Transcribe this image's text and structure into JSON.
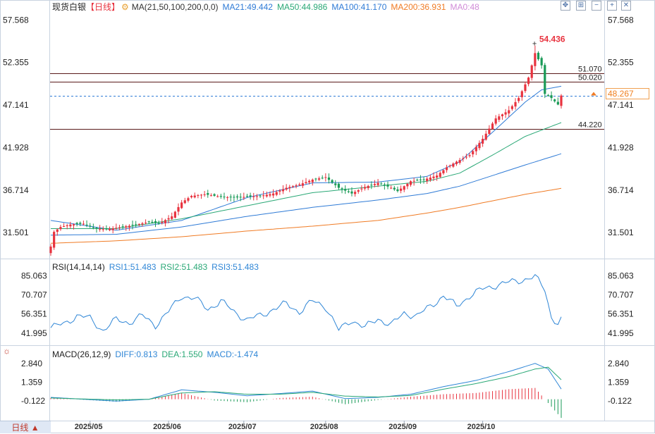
{
  "header": {
    "title": "现货白银",
    "period_tag": "【日线】",
    "ma_label": "MA(21,50,100,200,0,0)",
    "ma21": "MA21:49.442",
    "ma50": "MA50:44.986",
    "ma100": "MA100:41.170",
    "ma200": "MA200:36.931",
    "ma0": "MA0:48"
  },
  "rsi_header": {
    "label": "RSI(14,14,14)",
    "rsi1": "RSI1:51.483",
    "rsi2": "RSI2:51.483",
    "rsi3": "RSI3:51.483"
  },
  "macd_header": {
    "label": "MACD(26,12,9)",
    "diff": "DIFF:0.813",
    "dea": "DEA:1.550",
    "macd": "MACD:-1.474"
  },
  "toolbar": {
    "period_button": "日线 ▲"
  },
  "current_price": "48.267",
  "colors": {
    "up": "#e8333f",
    "down": "#1a9a57",
    "ma21": "#2f7bd6",
    "ma50": "#2aa876",
    "ma100": "#2f7bd6",
    "ma200": "#f07b24",
    "rsi": "#2f86d6",
    "level": "#5a1a1a",
    "peak": "#e8333f"
  },
  "chart_data": [
    {
      "type": "candlestick",
      "title": "现货白银",
      "y_ticks": [
        "57.568",
        "52.355",
        "47.141",
        "41.928",
        "36.714",
        "31.501"
      ],
      "ylim": [
        28.5,
        58.8
      ],
      "x_ticks": [
        "2025/05",
        "2025/06",
        "2025/07",
        "2025/08",
        "2025/09",
        "2025/10"
      ],
      "x_tick_index": [
        12,
        36,
        59,
        84,
        108,
        132
      ],
      "levels": [
        {
          "label": "51.070",
          "value": 51.07
        },
        {
          "label": "50.020",
          "value": 50.02
        },
        {
          "label": "44.220",
          "value": 44.22
        }
      ],
      "current_price": 48.267,
      "peak": {
        "label": "54.436",
        "value": 54.436,
        "index": 148
      },
      "close_anchors": [
        [
          0,
          29.8
        ],
        [
          1,
          31.6
        ],
        [
          3,
          32.2
        ],
        [
          6,
          32.5
        ],
        [
          10,
          32.6
        ],
        [
          14,
          32.0
        ],
        [
          17,
          31.9
        ],
        [
          20,
          32.1
        ],
        [
          25,
          32.4
        ],
        [
          30,
          32.8
        ],
        [
          33,
          32.6
        ],
        [
          37,
          33.5
        ],
        [
          40,
          35.2
        ],
        [
          43,
          36.0
        ],
        [
          47,
          36.2
        ],
        [
          52,
          35.9
        ],
        [
          56,
          35.8
        ],
        [
          60,
          35.9
        ],
        [
          64,
          36.0
        ],
        [
          68,
          36.3
        ],
        [
          72,
          37.0
        ],
        [
          76,
          37.4
        ],
        [
          80,
          38.0
        ],
        [
          84,
          38.3
        ],
        [
          88,
          37.0
        ],
        [
          92,
          36.3
        ],
        [
          96,
          37.1
        ],
        [
          100,
          37.6
        ],
        [
          104,
          37.0
        ],
        [
          106,
          36.6
        ],
        [
          110,
          37.8
        ],
        [
          114,
          38.0
        ],
        [
          118,
          38.5
        ],
        [
          121,
          39.5
        ],
        [
          124,
          40.2
        ],
        [
          128,
          41.0
        ],
        [
          132,
          43.0
        ],
        [
          136,
          45.5
        ],
        [
          140,
          46.5
        ],
        [
          143,
          48.0
        ],
        [
          146,
          50.5
        ],
        [
          148,
          53.5
        ],
        [
          150,
          52.0
        ],
        [
          151,
          48.5
        ],
        [
          153,
          48.0
        ],
        [
          155,
          47.2
        ],
        [
          156,
          48.3
        ]
      ],
      "ma_series": [
        {
          "name": "MA21",
          "anchors": [
            [
              0,
              33.0
            ],
            [
              20,
              31.8
            ],
            [
              40,
              33.0
            ],
            [
              60,
              35.8
            ],
            [
              80,
              37.6
            ],
            [
              100,
              37.7
            ],
            [
              115,
              38.4
            ],
            [
              125,
              40.2
            ],
            [
              135,
              43.8
            ],
            [
              145,
              47.5
            ],
            [
              150,
              49.0
            ],
            [
              156,
              49.44
            ]
          ]
        },
        {
          "name": "MA50",
          "anchors": [
            [
              0,
              32.0
            ],
            [
              20,
              32.0
            ],
            [
              40,
              33.2
            ],
            [
              60,
              34.8
            ],
            [
              80,
              36.4
            ],
            [
              100,
              37.2
            ],
            [
              115,
              37.8
            ],
            [
              125,
              38.8
            ],
            [
              135,
              41.0
            ],
            [
              145,
              43.3
            ],
            [
              156,
              44.99
            ]
          ]
        },
        {
          "name": "MA100",
          "anchors": [
            [
              0,
              31.2
            ],
            [
              20,
              31.3
            ],
            [
              40,
              32.2
            ],
            [
              60,
              33.5
            ],
            [
              80,
              34.6
            ],
            [
              100,
              35.5
            ],
            [
              115,
              36.3
            ],
            [
              125,
              37.2
            ],
            [
              135,
              38.5
            ],
            [
              145,
              39.8
            ],
            [
              156,
              41.17
            ]
          ]
        },
        {
          "name": "MA200",
          "anchors": [
            [
              0,
              30.2
            ],
            [
              20,
              30.5
            ],
            [
              40,
              31.0
            ],
            [
              60,
              31.7
            ],
            [
              80,
              32.3
            ],
            [
              100,
              33.0
            ],
            [
              115,
              33.9
            ],
            [
              125,
              34.6
            ],
            [
              135,
              35.4
            ],
            [
              145,
              36.2
            ],
            [
              156,
              36.93
            ]
          ]
        }
      ]
    },
    {
      "type": "line",
      "title": "RSI(14,14,14)",
      "y_ticks": [
        "85.063",
        "70.707",
        "56.351",
        "41.995"
      ],
      "ylim": [
        35,
        90
      ],
      "series_name": "RSI1",
      "anchors": [
        [
          0,
          46
        ],
        [
          4,
          49
        ],
        [
          8,
          55
        ],
        [
          12,
          53
        ],
        [
          16,
          44
        ],
        [
          20,
          52
        ],
        [
          24,
          50
        ],
        [
          28,
          55
        ],
        [
          32,
          48
        ],
        [
          36,
          58
        ],
        [
          40,
          70
        ],
        [
          44,
          68
        ],
        [
          48,
          60
        ],
        [
          52,
          66
        ],
        [
          56,
          58
        ],
        [
          60,
          52
        ],
        [
          64,
          55
        ],
        [
          68,
          60
        ],
        [
          72,
          64
        ],
        [
          76,
          58
        ],
        [
          80,
          66
        ],
        [
          84,
          62
        ],
        [
          88,
          44
        ],
        [
          92,
          52
        ],
        [
          96,
          46
        ],
        [
          100,
          53
        ],
        [
          104,
          48
        ],
        [
          108,
          57
        ],
        [
          112,
          55
        ],
        [
          116,
          62
        ],
        [
          120,
          70
        ],
        [
          124,
          62
        ],
        [
          128,
          70
        ],
        [
          132,
          75
        ],
        [
          136,
          78
        ],
        [
          140,
          80
        ],
        [
          144,
          82
        ],
        [
          148,
          84
        ],
        [
          151,
          75
        ],
        [
          153,
          54
        ],
        [
          155,
          49
        ],
        [
          156,
          51.5
        ]
      ]
    },
    {
      "type": "bar",
      "title": "MACD(26,12,9)",
      "y_ticks": [
        "2.840",
        "1.359",
        "-0.122"
      ],
      "ylim": [
        -1.7,
        3.4
      ],
      "diff_anchors": [
        [
          0,
          0.15
        ],
        [
          10,
          0.0
        ],
        [
          20,
          -0.15
        ],
        [
          30,
          0.0
        ],
        [
          40,
          0.75
        ],
        [
          50,
          0.55
        ],
        [
          60,
          0.28
        ],
        [
          70,
          0.45
        ],
        [
          80,
          0.65
        ],
        [
          90,
          0.05
        ],
        [
          100,
          0.15
        ],
        [
          110,
          0.4
        ],
        [
          120,
          1.0
        ],
        [
          130,
          1.5
        ],
        [
          140,
          2.2
        ],
        [
          148,
          2.85
        ],
        [
          152,
          2.4
        ],
        [
          156,
          0.81
        ]
      ],
      "dea_anchors": [
        [
          0,
          0.1
        ],
        [
          10,
          0.02
        ],
        [
          20,
          -0.05
        ],
        [
          30,
          0.0
        ],
        [
          40,
          0.5
        ],
        [
          50,
          0.6
        ],
        [
          60,
          0.4
        ],
        [
          70,
          0.4
        ],
        [
          80,
          0.55
        ],
        [
          90,
          0.25
        ],
        [
          100,
          0.18
        ],
        [
          110,
          0.3
        ],
        [
          120,
          0.8
        ],
        [
          130,
          1.25
        ],
        [
          140,
          1.8
        ],
        [
          148,
          2.4
        ],
        [
          152,
          2.55
        ],
        [
          156,
          1.55
        ]
      ]
    }
  ]
}
